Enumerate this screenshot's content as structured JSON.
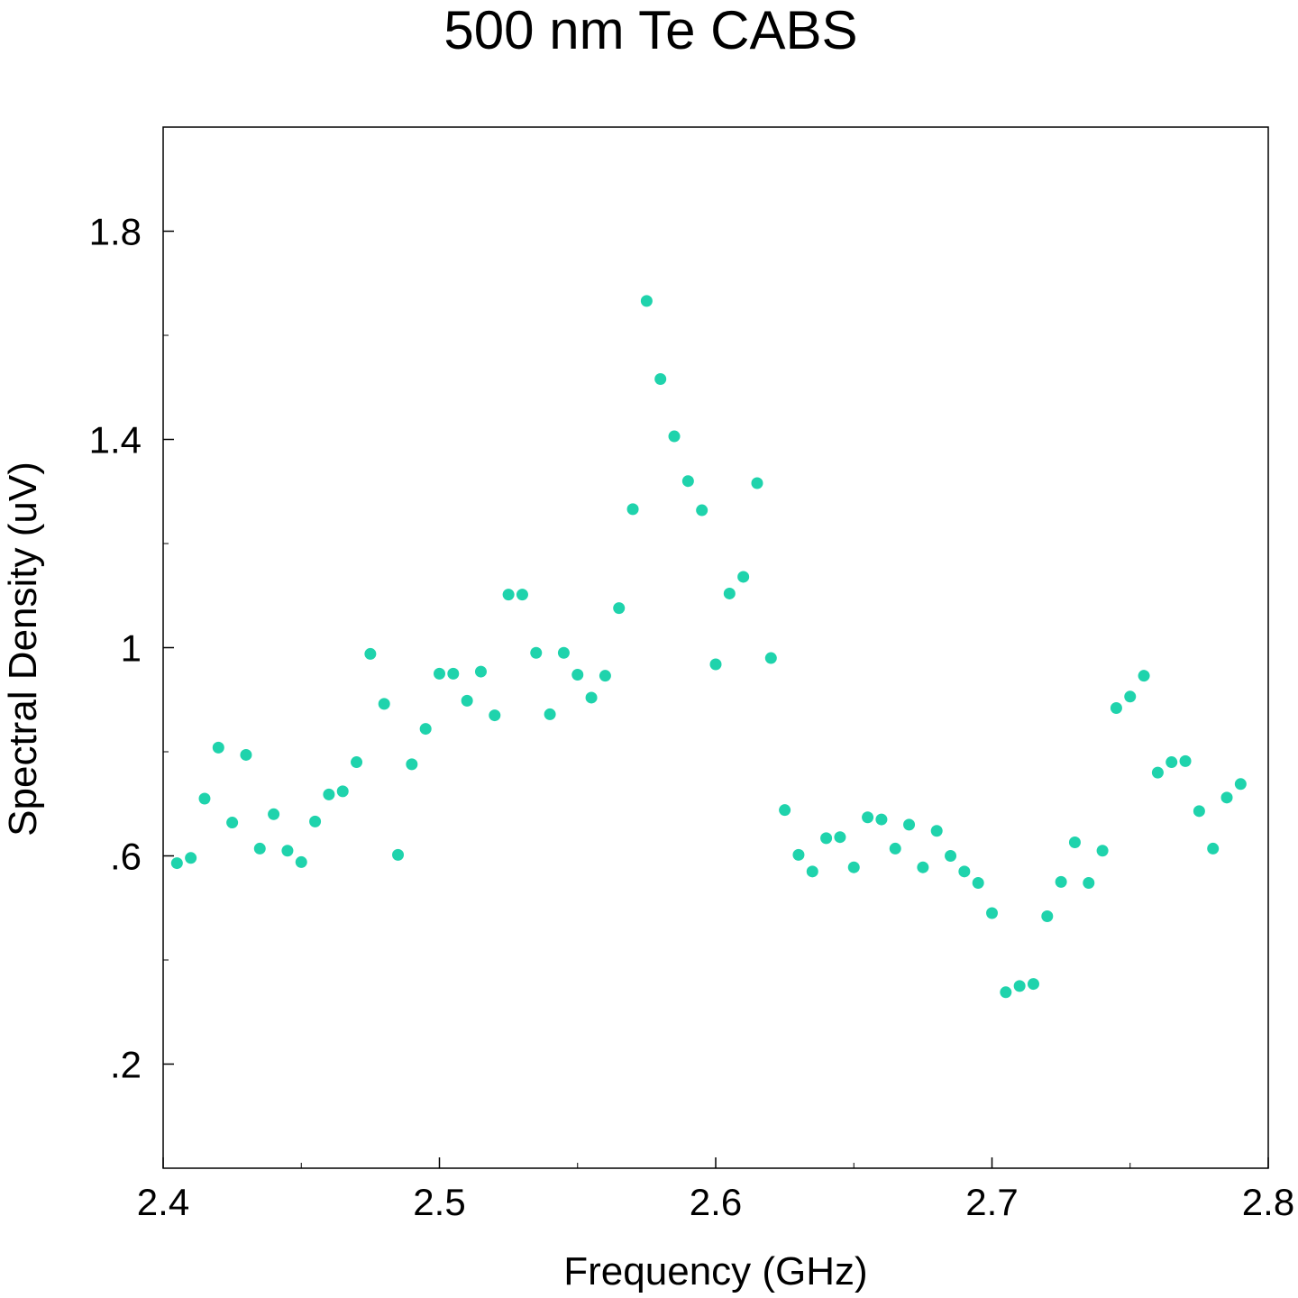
{
  "chart_data": {
    "type": "scatter",
    "title": "500 nm Te CABS",
    "xlabel": "Frequency (GHz)",
    "ylabel": "Spectral Density (uV)",
    "xlim": [
      2.4,
      2.8
    ],
    "ylim": [
      0.0,
      2.0
    ],
    "x_ticks": [
      {
        "value": 2.4,
        "label": "2.4"
      },
      {
        "value": 2.5,
        "label": "2.5"
      },
      {
        "value": 2.6,
        "label": "2.6"
      },
      {
        "value": 2.7,
        "label": "2.7"
      },
      {
        "value": 2.8,
        "label": "2.8"
      }
    ],
    "y_ticks": [
      {
        "value": 0.2,
        "label": ".2"
      },
      {
        "value": 0.6,
        "label": ".6"
      },
      {
        "value": 1.0,
        "label": "1"
      },
      {
        "value": 1.4,
        "label": "1.4"
      },
      {
        "value": 1.8,
        "label": "1.8"
      }
    ],
    "x_minor_ticks": [
      2.45,
      2.55,
      2.65,
      2.75
    ],
    "y_minor_ticks": [
      0.4,
      0.8,
      1.2,
      1.6
    ],
    "grid": false,
    "marker_color": "#1fd3ac",
    "series": [
      {
        "points": [
          [
            2.405,
            0.586
          ],
          [
            2.41,
            0.596
          ],
          [
            2.415,
            0.71
          ],
          [
            2.42,
            0.808
          ],
          [
            2.425,
            0.664
          ],
          [
            2.43,
            0.794
          ],
          [
            2.435,
            0.614
          ],
          [
            2.44,
            0.68
          ],
          [
            2.445,
            0.61
          ],
          [
            2.45,
            0.588
          ],
          [
            2.455,
            0.666
          ],
          [
            2.46,
            0.718
          ],
          [
            2.465,
            0.724
          ],
          [
            2.47,
            0.78
          ],
          [
            2.475,
            0.988
          ],
          [
            2.48,
            0.892
          ],
          [
            2.485,
            0.602
          ],
          [
            2.49,
            0.776
          ],
          [
            2.495,
            0.844
          ],
          [
            2.5,
            0.95
          ],
          [
            2.505,
            0.95
          ],
          [
            2.51,
            0.898
          ],
          [
            2.515,
            0.954
          ],
          [
            2.52,
            0.87
          ],
          [
            2.525,
            1.102
          ],
          [
            2.53,
            1.102
          ],
          [
            2.535,
            0.99
          ],
          [
            2.54,
            0.872
          ],
          [
            2.545,
            0.99
          ],
          [
            2.55,
            0.948
          ],
          [
            2.555,
            0.904
          ],
          [
            2.56,
            0.946
          ],
          [
            2.565,
            1.076
          ],
          [
            2.57,
            1.266
          ],
          [
            2.575,
            1.666
          ],
          [
            2.58,
            1.516
          ],
          [
            2.585,
            1.406
          ],
          [
            2.59,
            1.32
          ],
          [
            2.595,
            1.264
          ],
          [
            2.6,
            0.968
          ],
          [
            2.605,
            1.104
          ],
          [
            2.61,
            1.136
          ],
          [
            2.615,
            1.316
          ],
          [
            2.62,
            0.98
          ],
          [
            2.625,
            0.688
          ],
          [
            2.63,
            0.602
          ],
          [
            2.635,
            0.57
          ],
          [
            2.64,
            0.634
          ],
          [
            2.645,
            0.636
          ],
          [
            2.65,
            0.578
          ],
          [
            2.655,
            0.674
          ],
          [
            2.66,
            0.67
          ],
          [
            2.665,
            0.614
          ],
          [
            2.67,
            0.66
          ],
          [
            2.675,
            0.578
          ],
          [
            2.68,
            0.648
          ],
          [
            2.685,
            0.6
          ],
          [
            2.69,
            0.57
          ],
          [
            2.695,
            0.548
          ],
          [
            2.7,
            0.49
          ],
          [
            2.705,
            0.338
          ],
          [
            2.71,
            0.35
          ],
          [
            2.715,
            0.354
          ],
          [
            2.72,
            0.484
          ],
          [
            2.725,
            0.55
          ],
          [
            2.73,
            0.626
          ],
          [
            2.735,
            0.548
          ],
          [
            2.74,
            0.61
          ],
          [
            2.745,
            0.884
          ],
          [
            2.75,
            0.906
          ],
          [
            2.755,
            0.946
          ],
          [
            2.76,
            0.76
          ],
          [
            2.765,
            0.78
          ],
          [
            2.77,
            0.782
          ],
          [
            2.775,
            0.686
          ],
          [
            2.78,
            0.614
          ],
          [
            2.785,
            0.712
          ],
          [
            2.79,
            0.738
          ]
        ]
      }
    ]
  }
}
